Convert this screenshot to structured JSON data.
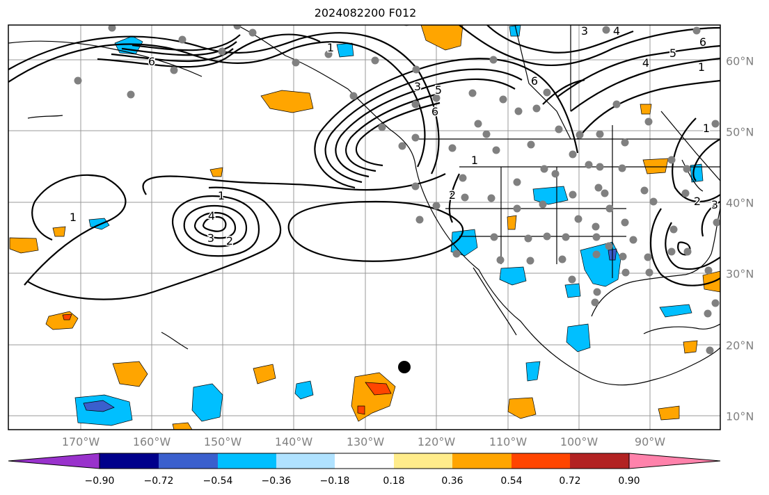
{
  "title": "2024082200 F012",
  "lon_labels": [
    "170°W",
    "160°W",
    "150°W",
    "140°W",
    "130°W",
    "120°W",
    "110°W",
    "100°W",
    "90°W"
  ],
  "lat_labels": [
    "60°N",
    "50°N",
    "40°N",
    "30°N",
    "20°N",
    "10°N"
  ],
  "colorbar": {
    "ticks": [
      "−0.90",
      "−0.72",
      "−0.54",
      "−0.36",
      "−0.18",
      "0.18",
      "0.36",
      "0.54",
      "0.72",
      "0.90"
    ],
    "colors": [
      "#9932cc",
      "#00008b",
      "#3a5fcd",
      "#00bfff",
      "#b0e2ff",
      "#ffffff",
      "#ffec8b",
      "#ffa500",
      "#ff4500",
      "#b22222",
      "#ff82ab"
    ]
  },
  "contour_labels": [
    "1",
    "1",
    "4",
    "3",
    "2",
    "1",
    "2",
    "1",
    "3",
    "5",
    "6",
    "6",
    "4",
    "3",
    "4",
    "5",
    "6",
    "1",
    "1",
    "2",
    "3",
    "6"
  ],
  "icons": [
    "station-dot",
    "tropical-center-dot"
  ]
}
